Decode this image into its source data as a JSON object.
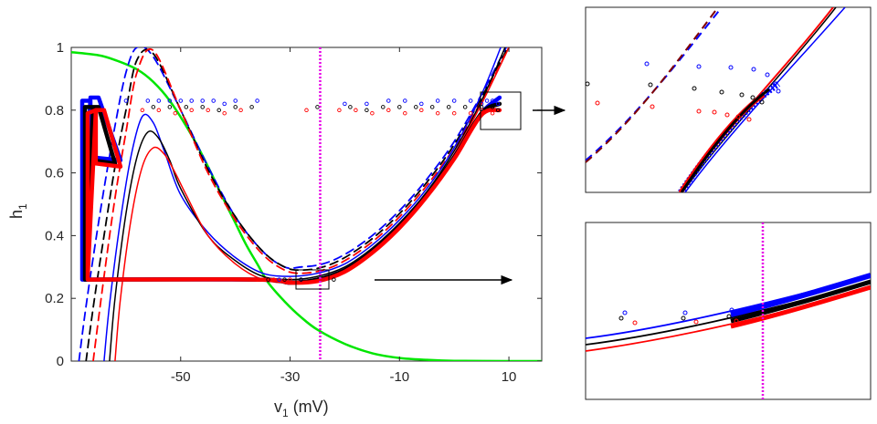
{
  "chart_data": [
    {
      "type": "line",
      "title": "",
      "xlabel": "v",
      "xlabel_sub": "1",
      "xlabel_unit": " (mV)",
      "ylabel": "h",
      "ylabel_sub": "1",
      "xlim": [
        -70,
        16
      ],
      "ylim": [
        0,
        1
      ],
      "xticks": [
        -50,
        -30,
        -10,
        10
      ],
      "xtick_labels": [
        "-50",
        "-30",
        "-10",
        "10"
      ],
      "yticks": [
        0,
        0.2,
        0.4,
        0.6,
        0.8,
        1
      ],
      "ytick_labels": [
        "0",
        "0.2",
        "0.4",
        "0.6",
        "0.8",
        "1"
      ],
      "grid": false,
      "legend": "none",
      "colors": {
        "blue": "#0000ff",
        "black": "#000000",
        "red": "#ff0000",
        "green": "#00e600",
        "magenta": "#e600e6",
        "darkred": "#800000"
      },
      "vertical_line_x": -24.5,
      "series": [
        {
          "color": "green",
          "style": "solid",
          "x": [
            -70,
            -65,
            -62,
            -58,
            -55,
            -52,
            -48,
            -45,
            -42,
            -40,
            -38,
            -36,
            -34,
            -31,
            -28,
            -25,
            -20,
            -15,
            -10,
            -5,
            0,
            10,
            16
          ],
          "y": [
            0.985,
            0.975,
            0.96,
            0.93,
            0.89,
            0.83,
            0.72,
            0.62,
            0.51,
            0.44,
            0.37,
            0.31,
            0.25,
            0.19,
            0.14,
            0.1,
            0.055,
            0.025,
            0.01,
            0.004,
            0.001,
            0,
            0
          ]
        },
        {
          "color": "blue",
          "style": "dashed",
          "x": [
            -68.6,
            -67.5,
            -66,
            -64,
            -62,
            -60,
            -58,
            -55,
            -50,
            -45,
            -40,
            -35,
            -31,
            -28,
            -24,
            -20,
            -15,
            -10,
            -5,
            0,
            5,
            9.5
          ],
          "y": [
            0,
            0.15,
            0.33,
            0.55,
            0.75,
            0.92,
            1.0,
            0.97,
            0.8,
            0.62,
            0.46,
            0.35,
            0.3,
            0.3,
            0.31,
            0.34,
            0.4,
            0.48,
            0.58,
            0.7,
            0.85,
            1.0
          ]
        },
        {
          "color": "black",
          "style": "dashed",
          "x": [
            -67.3,
            -66,
            -64,
            -62,
            -60,
            -58,
            -55,
            -50,
            -45,
            -40,
            -35,
            -31,
            -28,
            -24,
            -20,
            -15,
            -10,
            -5,
            0,
            5,
            9.8
          ],
          "y": [
            0,
            0.17,
            0.4,
            0.62,
            0.8,
            0.96,
            0.98,
            0.8,
            0.61,
            0.46,
            0.35,
            0.3,
            0.29,
            0.3,
            0.33,
            0.39,
            0.47,
            0.57,
            0.69,
            0.84,
            1.0
          ]
        },
        {
          "color": "red",
          "style": "dashed",
          "x": [
            -66,
            -64,
            -62,
            -60,
            -58,
            -55,
            -50,
            -45,
            -40,
            -35,
            -31,
            -28,
            -24,
            -20,
            -15,
            -10,
            -5,
            0,
            5,
            10
          ],
          "y": [
            0,
            0.27,
            0.52,
            0.73,
            0.92,
            0.99,
            0.8,
            0.6,
            0.45,
            0.34,
            0.29,
            0.28,
            0.29,
            0.32,
            0.38,
            0.46,
            0.56,
            0.68,
            0.83,
            1.0
          ]
        },
        {
          "color": "blue",
          "style": "solid",
          "x": [
            -64,
            -63,
            -61,
            -59,
            -57,
            -55,
            -53,
            -50,
            -45,
            -40,
            -35,
            -30,
            -25,
            -20,
            -15,
            -10,
            -5,
            0,
            5,
            8.5
          ],
          "y": [
            0,
            0.18,
            0.45,
            0.66,
            0.78,
            0.76,
            0.67,
            0.53,
            0.41,
            0.33,
            0.28,
            0.27,
            0.28,
            0.31,
            0.37,
            0.45,
            0.55,
            0.68,
            0.85,
            1.0
          ]
        },
        {
          "color": "black",
          "style": "solid",
          "x": [
            -63,
            -62,
            -60,
            -58,
            -56,
            -54,
            -52,
            -50,
            -45,
            -40,
            -35,
            -30,
            -25,
            -20,
            -15,
            -10,
            -5,
            0,
            5,
            9.3
          ],
          "y": [
            0,
            0.2,
            0.47,
            0.65,
            0.73,
            0.71,
            0.64,
            0.55,
            0.4,
            0.32,
            0.27,
            0.26,
            0.27,
            0.3,
            0.36,
            0.44,
            0.54,
            0.67,
            0.83,
            1.0
          ]
        },
        {
          "color": "red",
          "style": "solid",
          "x": [
            -62,
            -61,
            -59,
            -57,
            -55,
            -53,
            -51,
            -49,
            -45,
            -40,
            -35,
            -30,
            -25,
            -20,
            -15,
            -10,
            -5,
            0,
            5,
            10
          ],
          "y": [
            0,
            0.2,
            0.46,
            0.62,
            0.68,
            0.66,
            0.6,
            0.53,
            0.4,
            0.31,
            0.26,
            0.25,
            0.26,
            0.29,
            0.35,
            0.43,
            0.53,
            0.66,
            0.82,
            1.0
          ]
        },
        {
          "color": "blue",
          "style": "thick",
          "x": [
            -68,
            -68,
            -66.5,
            -66.5,
            -61,
            -65,
            -66.5,
            -68,
            -68,
            -36,
            -30,
            -25,
            -20,
            -15,
            -10,
            -5,
            0,
            5,
            8.3
          ],
          "y": [
            0.27,
            0.83,
            0.83,
            0.65,
            0.64,
            0.84,
            0.84,
            0.3,
            0.26,
            0.26,
            0.25,
            0.26,
            0.29,
            0.35,
            0.43,
            0.53,
            0.65,
            0.79,
            0.84
          ]
        },
        {
          "color": "black",
          "style": "thick",
          "x": [
            -67.5,
            -67.5,
            -66,
            -66,
            -62,
            -65,
            -66,
            -67.5,
            -67.5,
            -36,
            -30,
            -25,
            -20,
            -15,
            -10,
            -5,
            0,
            5,
            8.3
          ],
          "y": [
            0.27,
            0.81,
            0.81,
            0.64,
            0.63,
            0.81,
            0.81,
            0.28,
            0.26,
            0.26,
            0.25,
            0.26,
            0.29,
            0.35,
            0.43,
            0.53,
            0.65,
            0.79,
            0.82
          ]
        },
        {
          "color": "red",
          "style": "thick",
          "x": [
            -67,
            -67,
            -65.5,
            -65.5,
            -61,
            -64,
            -65.5,
            -67,
            -67,
            -36,
            -30,
            -25,
            -20,
            -15,
            -10,
            -5,
            0,
            5,
            8.3
          ],
          "y": [
            0.26,
            0.79,
            0.8,
            0.63,
            0.62,
            0.8,
            0.8,
            0.27,
            0.26,
            0.26,
            0.25,
            0.255,
            0.285,
            0.345,
            0.425,
            0.525,
            0.645,
            0.785,
            0.8
          ]
        }
      ],
      "scatter": [
        {
          "color": "blue",
          "x": [
            -60,
            -56,
            -54,
            -52,
            -50,
            -48,
            -46,
            -44,
            -42,
            -40,
            -36,
            -32,
            -28,
            -24,
            -20,
            -16,
            -12,
            -9,
            -6,
            -3,
            0,
            3,
            5,
            6,
            7,
            8
          ],
          "y": [
            0.83,
            0.83,
            0.83,
            0.83,
            0.83,
            0.83,
            0.83,
            0.83,
            0.82,
            0.83,
            0.83,
            0.26,
            0.26,
            0.26,
            0.82,
            0.82,
            0.83,
            0.83,
            0.82,
            0.83,
            0.83,
            0.83,
            0.82,
            0.83,
            0.83,
            0.82
          ]
        },
        {
          "color": "black",
          "x": [
            -55,
            -52,
            -49,
            -46,
            -43,
            -40,
            -37,
            -34,
            -31,
            -28,
            -25,
            -22,
            -19,
            -16,
            -13,
            -10,
            -7,
            -4,
            -1,
            2,
            5,
            7,
            8
          ],
          "y": [
            0.81,
            0.81,
            0.81,
            0.81,
            0.8,
            0.81,
            0.81,
            0.26,
            0.26,
            0.26,
            0.81,
            0.26,
            0.81,
            0.8,
            0.81,
            0.81,
            0.81,
            0.81,
            0.81,
            0.81,
            0.81,
            0.81,
            0.8
          ]
        },
        {
          "color": "red",
          "x": [
            -57,
            -54,
            -51,
            -48,
            -45,
            -42,
            -39,
            -36,
            -33,
            -30,
            -27,
            -24,
            -21,
            -18,
            -15,
            -12,
            -9,
            -6,
            -3,
            0,
            3,
            5,
            7
          ],
          "y": [
            0.8,
            0.8,
            0.79,
            0.8,
            0.8,
            0.79,
            0.8,
            0.26,
            0.26,
            0.26,
            0.8,
            0.26,
            0.8,
            0.8,
            0.79,
            0.8,
            0.79,
            0.8,
            0.79,
            0.79,
            0.79,
            0.8,
            0.79
          ]
        }
      ]
    }
  ]
}
